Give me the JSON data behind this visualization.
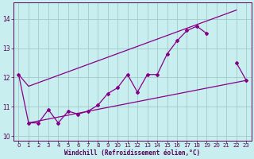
{
  "xlabel": "Windchill (Refroidissement éolien,°C)",
  "bg_color": "#c8eef0",
  "grid_color": "#a0ccc8",
  "line_color": "#880088",
  "spine_color": "#550055",
  "xlim": [
    -0.5,
    23.5
  ],
  "ylim": [
    9.85,
    14.55
  ],
  "yticks": [
    10,
    11,
    12,
    13,
    14
  ],
  "xticks": [
    0,
    1,
    2,
    3,
    4,
    5,
    6,
    7,
    8,
    9,
    10,
    11,
    12,
    13,
    14,
    15,
    16,
    17,
    18,
    19,
    20,
    21,
    22,
    23
  ],
  "data_x": [
    0,
    1,
    2,
    3,
    4,
    5,
    6,
    7,
    8,
    9,
    10,
    11,
    12,
    13,
    14,
    15,
    16,
    17,
    18,
    19,
    20,
    21,
    22,
    23
  ],
  "data_y": [
    12.1,
    10.45,
    10.45,
    10.9,
    10.45,
    10.85,
    10.75,
    10.85,
    11.05,
    11.45,
    11.65,
    12.1,
    11.5,
    12.1,
    12.1,
    12.8,
    13.25,
    13.6,
    13.75,
    13.5,
    null,
    null,
    12.5,
    11.9
  ],
  "upper_line_x": [
    0,
    1,
    22
  ],
  "upper_line_y": [
    12.1,
    11.7,
    14.3
  ],
  "lower_line_x": [
    1,
    23
  ],
  "lower_line_y": [
    10.45,
    11.9
  ],
  "note": "upper line goes from (0,12.1) -> (1,11.7) -> (22,14.3), lower from (1,10.45) -> (23,11.9)"
}
